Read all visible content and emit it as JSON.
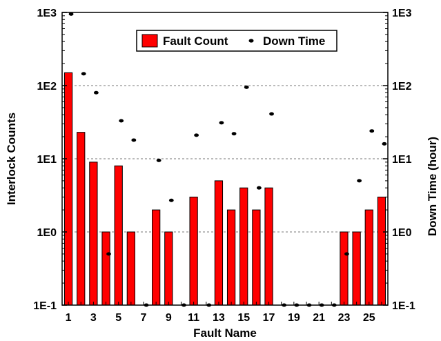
{
  "chart_data": {
    "type": "bar",
    "title": "",
    "xlabel": "Fault Name",
    "ylabel": "Interlock Counts",
    "y2label": "Down Time (hour)",
    "yscale": "log",
    "ylim": [
      0.1,
      1000
    ],
    "y_tick_labels": [
      "1E-1",
      "1E0",
      "1E1",
      "1E2",
      "1E3"
    ],
    "y_tick_values": [
      0.1,
      1,
      10,
      100,
      1000
    ],
    "x_tick_labels": [
      "1",
      "3",
      "5",
      "7",
      "9",
      "11",
      "13",
      "15",
      "17",
      "19",
      "21",
      "23",
      "25"
    ],
    "x_tick_values": [
      1,
      3,
      5,
      7,
      9,
      11,
      13,
      15,
      17,
      19,
      21,
      23,
      25
    ],
    "grid": "horizontal dashed",
    "legend_position": "top-center",
    "categories": [
      1,
      2,
      3,
      4,
      5,
      6,
      7,
      8,
      9,
      10,
      11,
      12,
      13,
      14,
      15,
      16,
      17,
      18,
      19,
      20,
      21,
      22,
      23,
      24,
      25,
      26
    ],
    "series": [
      {
        "name": "Fault Count",
        "kind": "bar",
        "color": "#ff0000",
        "values": [
          150,
          23,
          9,
          1,
          8,
          1,
          null,
          2,
          1,
          null,
          3,
          null,
          5,
          2,
          4,
          2,
          4,
          null,
          null,
          null,
          null,
          null,
          1,
          1,
          2,
          3
        ]
      },
      {
        "name": "Down Time",
        "kind": "scatter",
        "color": "#000000",
        "values": [
          950,
          145,
          80,
          0.5,
          33,
          18,
          0.1,
          9.5,
          2.7,
          0.1,
          21,
          0.1,
          31,
          22,
          95,
          4,
          41,
          0.1,
          0.1,
          0.1,
          0.1,
          0.1,
          0.5,
          5,
          24,
          16
        ]
      }
    ]
  }
}
